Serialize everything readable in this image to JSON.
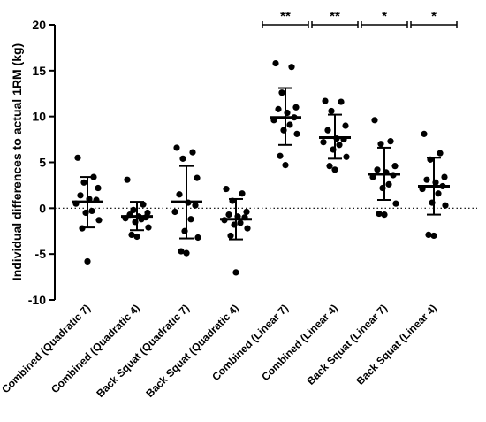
{
  "chart_data": {
    "type": "scatter",
    "title": "",
    "ylabel": "Individual differences to actual 1RM (kg)",
    "xlabel": "",
    "ylim": [
      -10,
      20
    ],
    "yticks": [
      -10,
      -5,
      0,
      5,
      10,
      15,
      20
    ],
    "ytick_labels": [
      "-10",
      "-5",
      "0",
      "5",
      "10",
      "15",
      "20"
    ],
    "reference_line": {
      "y": 0,
      "style": "dotted"
    },
    "grid": false,
    "legend": "none",
    "point_color": "#000000",
    "categories": [
      "Combined (Quadratic 7)",
      "Combined (Quadratic 4)",
      "Back Squat (Quadratic 7)",
      "Back Squat (Quadratic 4)",
      "Combined (Linear 7)",
      "Combined (Linear 4)",
      "Back Squat (Linear 7)",
      "Back Squat (Linear 4)"
    ],
    "groups": [
      {
        "mean": 0.7,
        "sd_low": -2.1,
        "sd_high": 3.4,
        "points": [
          5.5,
          3.4,
          2.8,
          2.2,
          1.4,
          1.0,
          0.9,
          0.5,
          -0.3,
          -0.5,
          -1.3,
          -2.2,
          -5.8
        ]
      },
      {
        "mean": -0.9,
        "sd_low": -2.4,
        "sd_high": 0.7,
        "points": [
          3.1,
          0.4,
          -0.2,
          -0.5,
          -0.7,
          -0.9,
          -1.0,
          -1.1,
          -1.2,
          -1.5,
          -2.1,
          -2.9,
          -3.1
        ]
      },
      {
        "mean": 0.7,
        "sd_low": -3.3,
        "sd_high": 4.6,
        "points": [
          6.6,
          6.1,
          5.4,
          3.3,
          1.5,
          0.6,
          0.3,
          -0.4,
          -1.2,
          -2.5,
          -3.2,
          -4.7,
          -4.9
        ]
      },
      {
        "mean": -1.2,
        "sd_low": -3.4,
        "sd_high": 1.0,
        "points": [
          2.1,
          1.6,
          0.8,
          -0.4,
          -0.7,
          -0.9,
          -1.0,
          -1.3,
          -1.6,
          -1.8,
          -2.2,
          -3.0,
          -7.0
        ]
      },
      {
        "mean": 9.9,
        "sd_low": 6.9,
        "sd_high": 13.1,
        "points": [
          15.8,
          15.4,
          12.6,
          11.0,
          10.8,
          10.4,
          9.9,
          9.6,
          9.1,
          8.5,
          8.1,
          5.7,
          4.7
        ]
      },
      {
        "mean": 7.7,
        "sd_low": 5.4,
        "sd_high": 10.2,
        "points": [
          11.7,
          11.6,
          10.6,
          9.0,
          8.5,
          7.6,
          7.5,
          7.2,
          6.9,
          6.4,
          5.6,
          4.6,
          4.2
        ]
      },
      {
        "mean": 3.7,
        "sd_low": 0.9,
        "sd_high": 6.6,
        "points": [
          9.6,
          7.3,
          7.0,
          4.6,
          4.2,
          3.9,
          3.6,
          3.4,
          2.6,
          2.2,
          0.5,
          -0.6,
          -0.7
        ]
      },
      {
        "mean": 2.4,
        "sd_low": -0.7,
        "sd_high": 5.5,
        "points": [
          8.1,
          6.0,
          5.3,
          3.4,
          3.1,
          2.8,
          2.4,
          2.1,
          1.6,
          0.6,
          0.3,
          -2.9,
          -3.0
        ]
      }
    ],
    "significance": [
      {
        "category_index": 4,
        "label": "**"
      },
      {
        "category_index": 5,
        "label": "**"
      },
      {
        "category_index": 6,
        "label": "*"
      },
      {
        "category_index": 7,
        "label": "*"
      }
    ]
  }
}
